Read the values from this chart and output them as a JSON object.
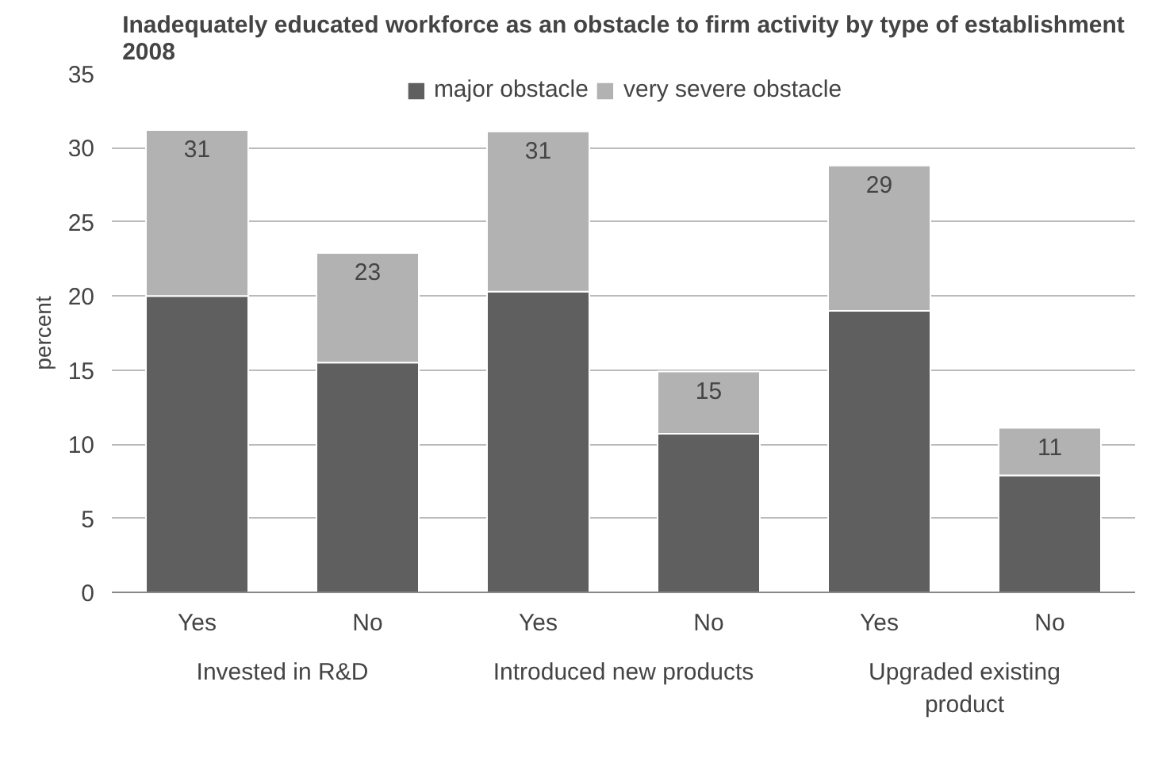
{
  "chart_data": {
    "type": "bar",
    "title": "Inadequately educated workforce as an obstacle to firm activity by type of establishment\n2008",
    "ylabel": "percent",
    "categories": [
      "Yes",
      "No",
      "Yes",
      "No",
      "Yes",
      "No"
    ],
    "stacked": true,
    "series": [
      {
        "name": "major obstacle",
        "color": "#5f5f5f",
        "values": [
          20,
          15.5,
          20.3,
          10.7,
          19,
          7.9
        ]
      },
      {
        "name": "very severe obstacle",
        "color": "#b2b2b2",
        "values": [
          11.2,
          7.4,
          10.8,
          4.2,
          9.8,
          3.2
        ]
      }
    ],
    "totals": [
      "31",
      "23",
      "31",
      "15",
      "29",
      "11"
    ],
    "annotations": [
      "Invested in R&D",
      "Introduced new products",
      "Upgraded existing\nproduct"
    ],
    "ylim": [
      0,
      35
    ],
    "yticks": [
      0,
      5,
      10,
      15,
      20,
      25,
      30,
      35
    ],
    "grid": "y",
    "legend": "top"
  }
}
